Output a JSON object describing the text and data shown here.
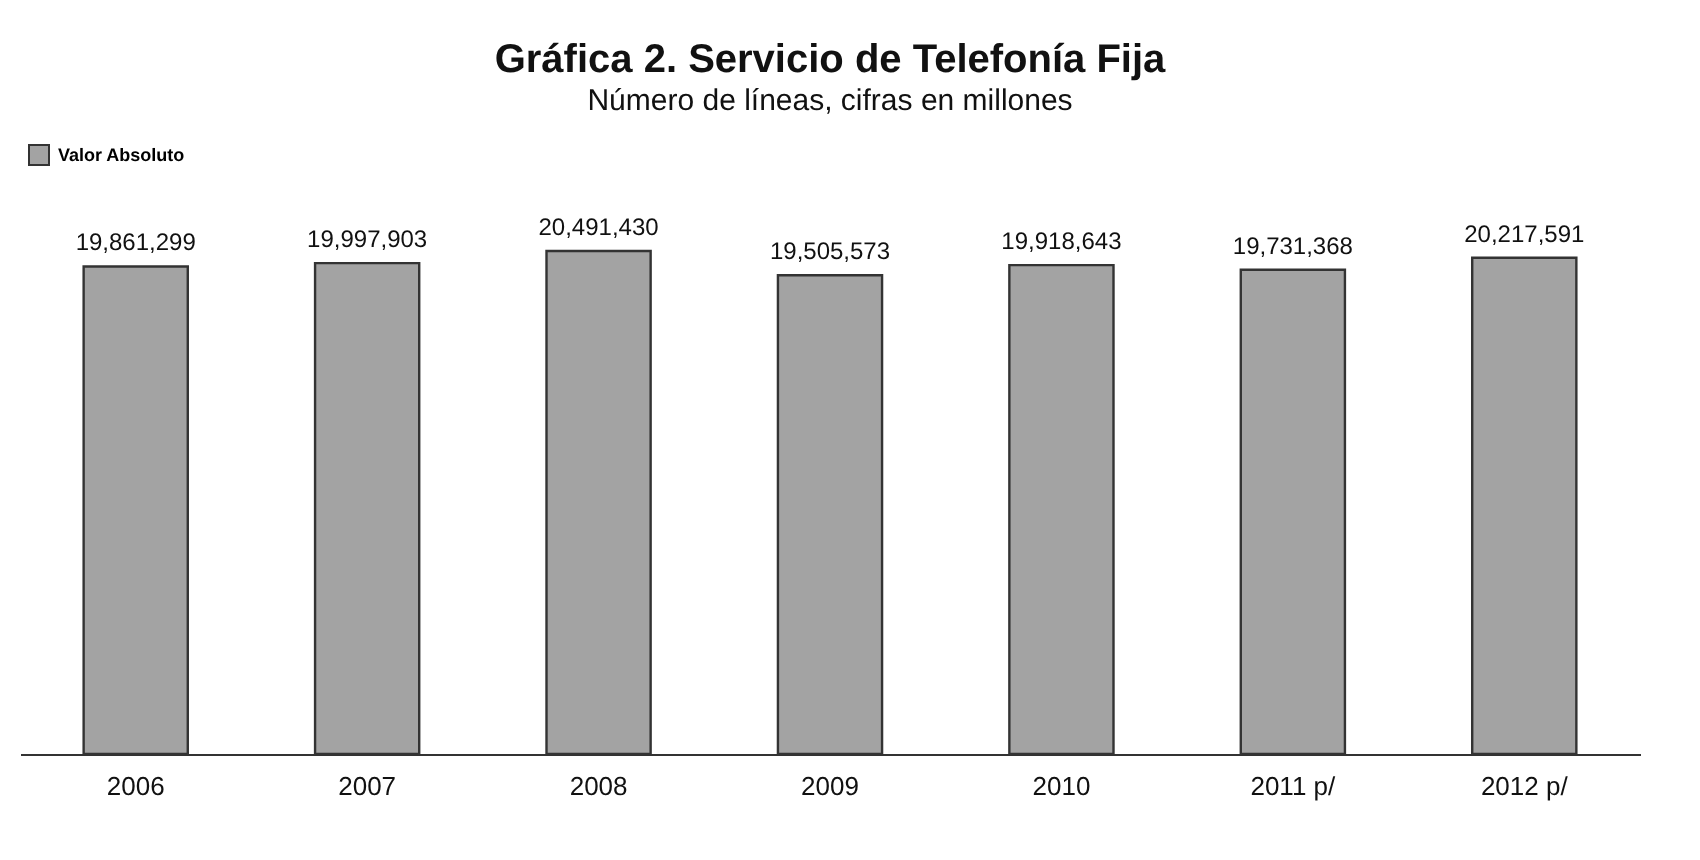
{
  "chart_data": {
    "type": "bar",
    "title": "Gráfica 2. Servicio de Telefonía Fija",
    "subtitle": "Número de líneas, cifras en millones",
    "categories": [
      "2006",
      "2007",
      "2008",
      "2009",
      "2010",
      "2011 p/",
      "2012 p/"
    ],
    "series": [
      {
        "name": "Valor Absoluto",
        "color": "#a3a3a3",
        "values": [
          19861299,
          19997903,
          20491430,
          19505573,
          19918643,
          19731368,
          20217591
        ],
        "value_labels": [
          "19,861,299",
          "19,997,903",
          "20,491,430",
          "19,505,573",
          "19,918,643",
          "19,731,368",
          "20,217,591"
        ]
      }
    ],
    "tick_labels": "x",
    "legend": "top",
    "grid": false
  }
}
